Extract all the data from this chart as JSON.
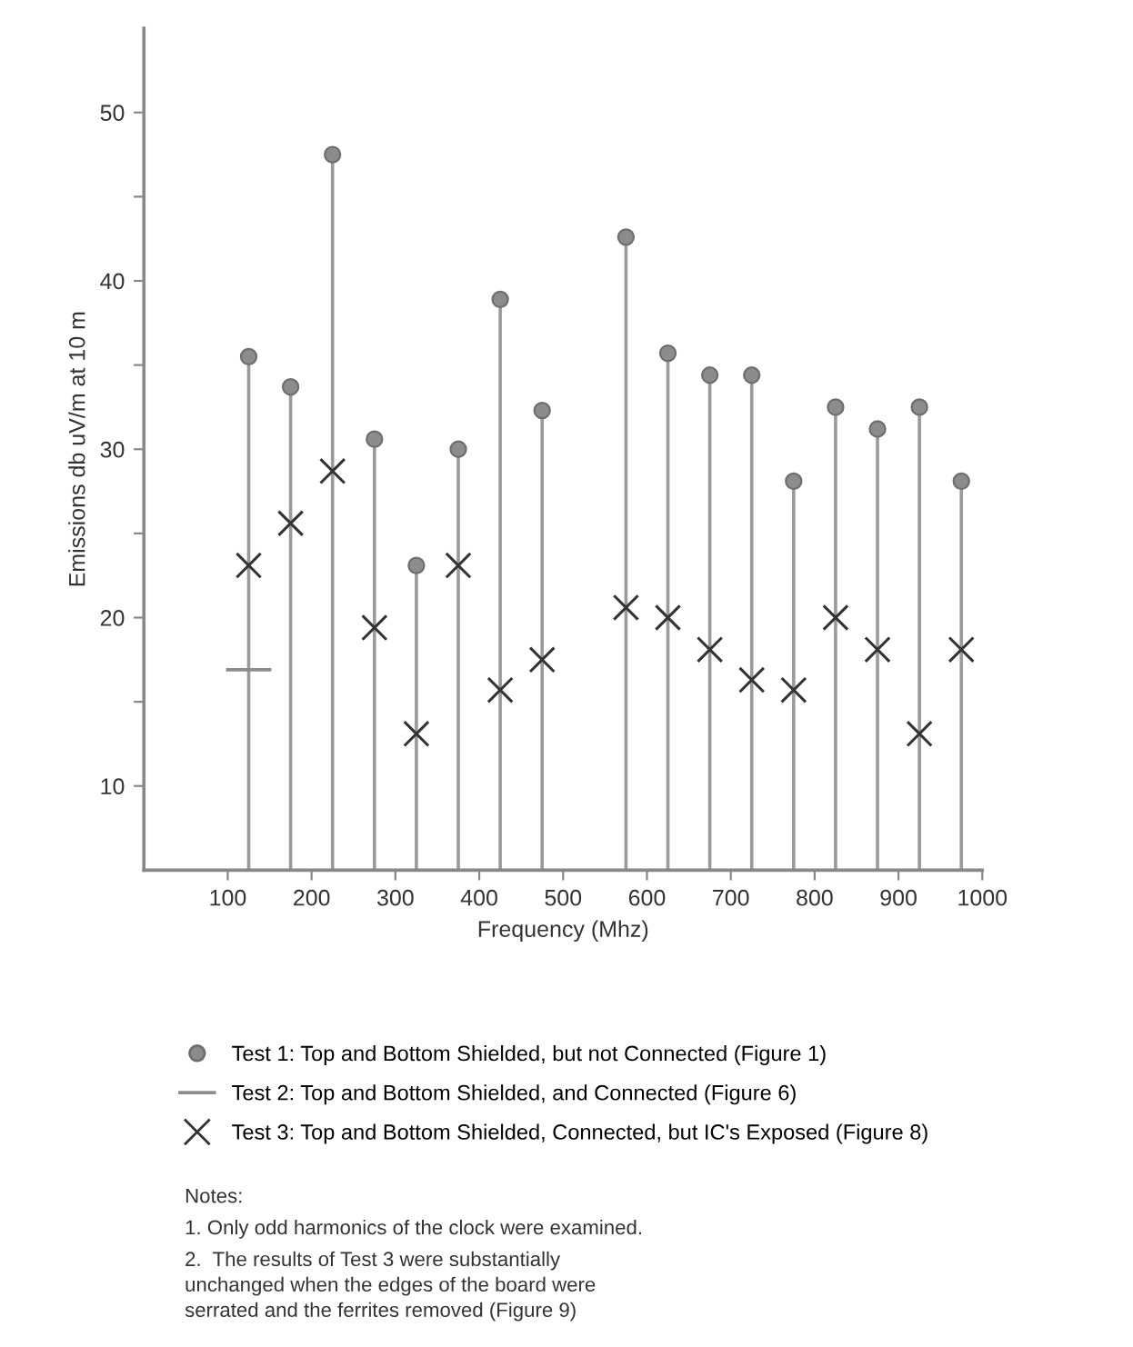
{
  "chart_data": {
    "type": "lollipop",
    "xlabel": "Frequency (Mhz)",
    "ylabel": "Emissions db uV/m at 10 m",
    "xlim": [
      0,
      1000
    ],
    "xticks": [
      100,
      200,
      300,
      400,
      500,
      600,
      700,
      800,
      900,
      1000
    ],
    "ylim": [
      5,
      55
    ],
    "yticks": [
      10,
      {
        "value": 15,
        "label": null
      },
      20,
      {
        "value": 25,
        "label": null
      },
      30,
      {
        "value": 35,
        "label": null
      },
      40,
      {
        "value": 45,
        "label": null
      },
      50
    ],
    "x": [
      125,
      175,
      225,
      275,
      325,
      375,
      425,
      475,
      575,
      625,
      675,
      725,
      775,
      825,
      875,
      925,
      975
    ],
    "series": [
      {
        "name": "Test 1: Top and Bottom Shielded, but not Connected (Figure 1)",
        "color": "#8c8c8c",
        "marker": "circle",
        "values": [
          35.5,
          33.7,
          47.5,
          30.6,
          23.1,
          30.0,
          38.9,
          32.3,
          42.6,
          35.7,
          34.4,
          34.4,
          28.1,
          32.5,
          31.2,
          32.5,
          28.1
        ]
      },
      {
        "name": "Test 2: Top and Bottom Shielded, and Connected (Figure 6)",
        "type": "line",
        "color": "#8c8c8c",
        "marker": "none",
        "x": [
          100,
          150
        ],
        "values": [
          16.9,
          16.9
        ]
      },
      {
        "name": "Test 3: Top and Bottom Shielded, Connected, but IC's Exposed (Figure 8)",
        "type": "scatter",
        "color": "#333333",
        "marker": "cross",
        "values": [
          23.1,
          25.6,
          28.7,
          19.4,
          13.1,
          23.1,
          15.7,
          17.5,
          20.6,
          20.0,
          18.1,
          16.3,
          15.7,
          20.0,
          18.1,
          13.1,
          18.1
        ]
      }
    ],
    "legend": "bottom",
    "grid": false,
    "annotations": [
      "Notes:",
      "1. Only odd harmonics of the clock were examined.",
      "2.  The results of Test 3 were substantially\nunchanged when the edges of the board were\nserrated and the ferrites removed (Figure 9)"
    ]
  }
}
